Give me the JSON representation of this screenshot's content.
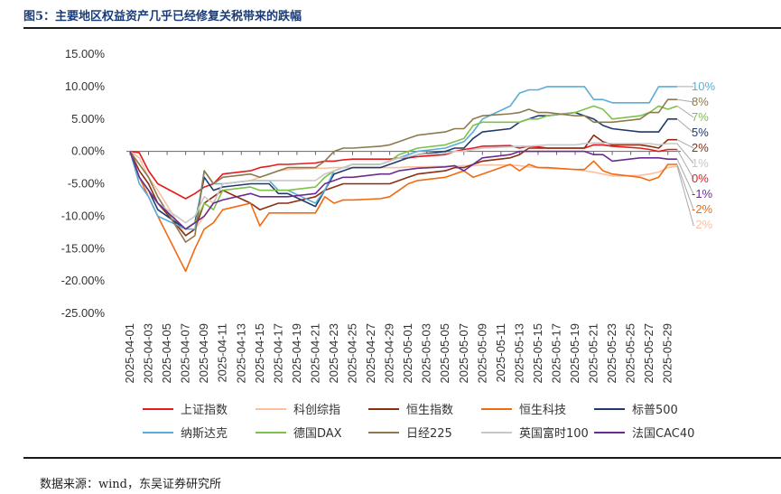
{
  "header": {
    "title": "图5：主要地区权益资产几乎已经修复关税带来的跌幅"
  },
  "footer": {
    "source": "数据来源：wind，东吴证券研究所"
  },
  "chart_data": {
    "type": "line",
    "ylim": [
      -25,
      15
    ],
    "yticks": [
      15,
      10,
      5,
      0,
      -5,
      -10,
      -15,
      -20,
      -25
    ],
    "ytick_labels": [
      "15.00%",
      "10.00%",
      "5.00%",
      "0.00%",
      "-5.00%",
      "-10.00%",
      "-15.00%",
      "-20.00%",
      "-25.00%"
    ],
    "x": [
      "2025-04-01",
      "2025-04-02",
      "2025-04-03",
      "2025-04-04",
      "2025-04-07",
      "2025-04-08",
      "2025-04-09",
      "2025-04-10",
      "2025-04-11",
      "2025-04-14",
      "2025-04-15",
      "2025-04-16",
      "2025-04-17",
      "2025-04-18",
      "2025-04-21",
      "2025-04-22",
      "2025-04-23",
      "2025-04-24",
      "2025-04-25",
      "2025-04-28",
      "2025-04-29",
      "2025-04-30",
      "2025-05-01",
      "2025-05-02",
      "2025-05-05",
      "2025-05-06",
      "2025-05-07",
      "2025-05-08",
      "2025-05-09",
      "2025-05-12",
      "2025-05-13",
      "2025-05-14",
      "2025-05-15",
      "2025-05-16",
      "2025-05-19",
      "2025-05-20",
      "2025-05-21",
      "2025-05-22",
      "2025-05-23",
      "2025-05-26",
      "2025-05-27",
      "2025-05-28",
      "2025-05-29",
      "2025-05-30"
    ],
    "xtick_labels": [
      "2025-04-01",
      "2025-04-03",
      "2025-04-05",
      "2025-04-07",
      "2025-04-09",
      "2025-04-11",
      "2025-04-13",
      "2025-04-15",
      "2025-04-17",
      "2025-04-19",
      "2025-04-21",
      "2025-04-23",
      "2025-04-25",
      "2025-04-27",
      "2025-04-29",
      "2025-05-01",
      "2025-05-03",
      "2025-05-05",
      "2025-05-07",
      "2025-05-09",
      "2025-05-11",
      "2025-05-13",
      "2025-05-15",
      "2025-05-17",
      "2025-05-19",
      "2025-05-21",
      "2025-05-23",
      "2025-05-25",
      "2025-05-27",
      "2025-05-29"
    ],
    "series": [
      {
        "name": "上证指数",
        "color": "#e41a1c",
        "end_label": "0%",
        "values": [
          0,
          -0.2,
          -3,
          -5,
          -7.3,
          -6.5,
          -5.5,
          -5,
          -3.5,
          -3,
          -2.5,
          -2.3,
          -2,
          -2,
          -1.8,
          -1.5,
          -1.5,
          -1.3,
          -1.2,
          -1.2,
          -1.2,
          -1.0,
          -1.0,
          -0.8,
          -0.5,
          0,
          0.3,
          0.5,
          0.8,
          0.9,
          0.5,
          0.8,
          0.7,
          0.5,
          0.5,
          0.5,
          1.0,
          1.0,
          0.8,
          0.5,
          0.3,
          0,
          0.3,
          0.3
        ]
      },
      {
        "name": "科创综指",
        "color": "#fdbf9f",
        "end_label": "-2%",
        "values": [
          0,
          -1,
          -4,
          -6,
          -13,
          -12,
          -10,
          -8,
          -5,
          -4.5,
          -4,
          -3.5,
          -3,
          -2.8,
          -2.6,
          -2.6,
          -2.5,
          -2.5,
          -2.5,
          -2.5,
          -2.5,
          -2.5,
          -2.4,
          -2.4,
          -2.3,
          -2.3,
          -2.2,
          -2.2,
          -2.1,
          -2.1,
          -2.2,
          -2.4,
          -2.5,
          -2.6,
          -2.8,
          -3.0,
          -3.2,
          -3.5,
          -3.8,
          -3.7,
          -3.5,
          -3.2,
          -2.5,
          -2.3
        ]
      },
      {
        "name": "恒生指数",
        "color": "#8b2e0f",
        "end_label": "2%",
        "values": [
          0,
          -3,
          -5,
          -8,
          -13,
          -12,
          -8,
          -7,
          -6,
          -8,
          -9,
          -8.5,
          -8,
          -8,
          -7,
          -6,
          -5.5,
          -5,
          -5,
          -5,
          -5,
          -4.5,
          -4,
          -3.5,
          -3,
          -2.5,
          -2.5,
          -2,
          -1.5,
          -1,
          -0.5,
          0.5,
          0.5,
          0.5,
          0.5,
          0.5,
          2.5,
          1.5,
          1.0,
          1.0,
          0.8,
          0.5,
          1.8,
          1.8
        ]
      },
      {
        "name": "恒生科技",
        "color": "#f26a10",
        "end_label": "-2%",
        "values": [
          0,
          -4,
          -7,
          -10,
          -18.5,
          -15,
          -12,
          -11,
          -9,
          -8,
          -11.5,
          -9.5,
          -9.5,
          -9.5,
          -9.5,
          -7,
          -8,
          -7.5,
          -7.5,
          -7.3,
          -7,
          -6,
          -5,
          -4.5,
          -4,
          -3.5,
          -3,
          -4,
          -3.5,
          -2,
          -3,
          -2,
          -2.5,
          -2.5,
          -2.8,
          -2.8,
          -1.5,
          -3,
          -3.5,
          -4,
          -4.5,
          -4,
          -2,
          -2
        ]
      },
      {
        "name": "标普500",
        "color": "#1f3a6b",
        "end_label": "5%",
        "values": [
          0,
          -4,
          -6,
          -9,
          -12,
          -11,
          -4,
          -6,
          -5.5,
          -5,
          -5,
          -5,
          -6.5,
          -6.5,
          -8.5,
          -6,
          -3.5,
          -3,
          -2.5,
          -2.5,
          -2,
          -1.5,
          -1,
          -0.5,
          0,
          0.5,
          0.5,
          2,
          3,
          3.5,
          4.5,
          5,
          5.5,
          5.5,
          6,
          5.5,
          5,
          4,
          3.5,
          3,
          3,
          3,
          5,
          5
        ]
      },
      {
        "name": "纳斯达克",
        "color": "#5badd9",
        "end_label": "10%",
        "values": [
          0,
          -5,
          -7,
          -10,
          -12,
          -12,
          -3,
          -5,
          -5,
          -4.5,
          -4.5,
          -4.5,
          -6,
          -6,
          -8,
          -6,
          -3,
          -2.5,
          -2,
          -2,
          -1.5,
          -1,
          -0.5,
          0,
          0.5,
          1,
          1.5,
          3,
          5,
          7,
          9,
          9.5,
          9.5,
          10,
          10,
          10,
          8,
          8,
          7.5,
          7.5,
          7.5,
          10,
          10,
          10
        ]
      },
      {
        "name": "德国DAX",
        "color": "#7cc24a",
        "end_label": "7%",
        "values": [
          0,
          -4,
          -6,
          -8,
          -12,
          -11,
          -8,
          -9,
          -6,
          -5.5,
          -6,
          -6,
          -6,
          -6,
          -5.5,
          -4,
          -3,
          -2.5,
          -2,
          -2,
          -1.5,
          -0.5,
          0,
          0.5,
          1,
          1.5,
          2,
          4,
          4.5,
          4.5,
          4.5,
          5,
          5,
          5.5,
          6,
          6.5,
          7,
          6.5,
          5,
          5.5,
          6,
          7,
          6.5,
          7
        ]
      },
      {
        "name": "日经225",
        "color": "#8c7a4e",
        "end_label": "8%",
        "values": [
          0,
          -2,
          -4,
          -7,
          -14,
          -13,
          -3,
          -5,
          -4,
          -3.5,
          -4,
          -3.5,
          -3,
          -2.5,
          -2.5,
          -1.5,
          0,
          0.5,
          0.5,
          0.8,
          1.0,
          1.5,
          2.0,
          2.5,
          3.0,
          3.5,
          3.5,
          5.0,
          5.5,
          5.8,
          6.0,
          6.5,
          6.0,
          6.0,
          5.5,
          5.5,
          4.5,
          4.5,
          4.5,
          5.0,
          6.0,
          6.0,
          8.0,
          8.0
        ]
      },
      {
        "name": "英国富时100",
        "color": "#c8c8c8",
        "end_label": "1%",
        "values": [
          0,
          -4,
          -6,
          -8,
          -11,
          -10,
          -7,
          -8,
          -5,
          -4.5,
          -4.5,
          -4.5,
          -4.5,
          -4.5,
          -4.5,
          -3.5,
          -3,
          -2.5,
          -2,
          -2,
          -1.5,
          -1.0,
          -0.8,
          -0.5,
          -0.3,
          0,
          0,
          0.3,
          0.5,
          0.7,
          0.8,
          0.8,
          0.9,
          1.0,
          1.0,
          1.2,
          1.3,
          1.3,
          1.2,
          1.2,
          1.2,
          1.0,
          1.2,
          1.2
        ]
      },
      {
        "name": "法国CAC40",
        "color": "#6a2c91",
        "end_label": "-1%",
        "values": [
          0,
          -4,
          -6,
          -8,
          -12,
          -11,
          -10,
          -8,
          -7.5,
          -6.5,
          -7,
          -7,
          -7,
          -7,
          -6.5,
          -5,
          -4.5,
          -4,
          -4,
          -3.5,
          -3.5,
          -3.0,
          -2.8,
          -2.6,
          -2.4,
          -2.2,
          -3,
          -2,
          -1,
          -0.5,
          0,
          0,
          0,
          0,
          0,
          0,
          -0.5,
          -0.5,
          -1.5,
          -1,
          -1,
          -1,
          -1.2,
          -1.2
        ]
      }
    ]
  }
}
